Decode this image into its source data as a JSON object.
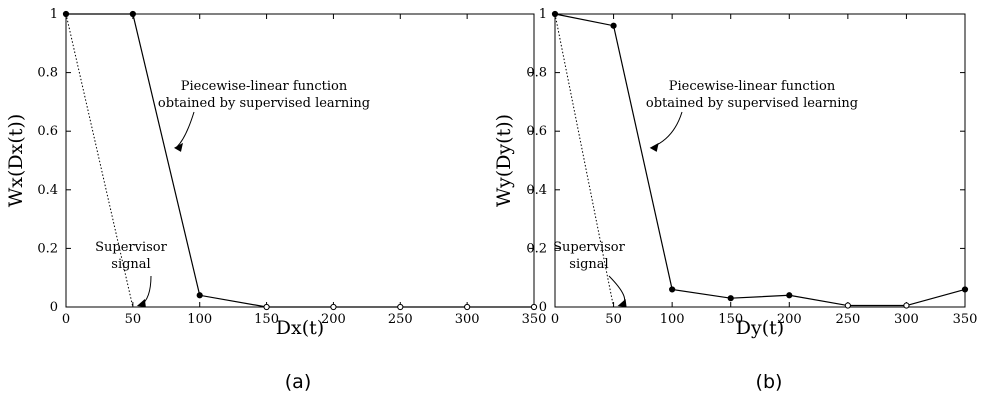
{
  "chart_data": [
    {
      "type": "line",
      "panel_label": "(a)",
      "xlabel": "Dx(t)",
      "ylabel": "Wx(Dx(t))",
      "xlim": [
        0,
        350
      ],
      "ylim": [
        0,
        1
      ],
      "x_ticks": [
        0,
        50,
        100,
        150,
        200,
        250,
        300,
        350
      ],
      "y_ticks": [
        0,
        0.2,
        0.4,
        0.6,
        0.8,
        1
      ],
      "y_tick_labels": [
        "0",
        "0.2",
        "0.4",
        "0.6",
        "0.8",
        "1"
      ],
      "grid": false,
      "series": [
        {
          "role": "learned",
          "style": "solid",
          "x": [
            0,
            50,
            100,
            150,
            200,
            250,
            300,
            350
          ],
          "y": [
            1,
            1,
            0.04,
            0,
            0,
            0,
            0,
            0
          ],
          "filled_markers": [
            0,
            50,
            100
          ],
          "open_markers": [
            150,
            200,
            250,
            300,
            350
          ]
        },
        {
          "role": "supervisor",
          "style": "dotted",
          "x": [
            0,
            50
          ],
          "y": [
            1,
            0
          ]
        }
      ],
      "annotations": [
        {
          "lines": [
            "Piecewise-linear function",
            "obtained by supervised learning"
          ],
          "arrow_to": [
            80,
            0.55
          ]
        },
        {
          "lines": [
            "Supervisor",
            "signal"
          ],
          "arrow_to": [
            50,
            0
          ]
        }
      ]
    },
    {
      "type": "line",
      "panel_label": "(b)",
      "xlabel": "Dy(t)",
      "ylabel": "Wy(Dy(t))",
      "xlim": [
        0,
        350
      ],
      "ylim": [
        0,
        1
      ],
      "x_ticks": [
        0,
        50,
        100,
        150,
        200,
        250,
        300,
        350
      ],
      "y_ticks": [
        0,
        0.2,
        0.4,
        0.6,
        0.8,
        1
      ],
      "y_tick_labels": [
        "0",
        "0.2",
        "0.4",
        "0.6",
        "0.8",
        "1"
      ],
      "grid": false,
      "series": [
        {
          "role": "learned",
          "style": "solid",
          "x": [
            0,
            50,
            100,
            150,
            200,
            250,
            300,
            350
          ],
          "y": [
            1,
            0.96,
            0.06,
            0.03,
            0.04,
            0.005,
            0.005,
            0.06
          ],
          "filled_markers": [
            0,
            50,
            100,
            150,
            200,
            350
          ],
          "open_markers": [
            250,
            300
          ]
        },
        {
          "role": "supervisor",
          "style": "dotted",
          "x": [
            0,
            50
          ],
          "y": [
            1,
            0
          ]
        }
      ],
      "annotations": [
        {
          "lines": [
            "Piecewise-linear function",
            "obtained by supervised learning"
          ],
          "arrow_to": [
            80,
            0.55
          ]
        },
        {
          "lines": [
            "Supervisor",
            "signal"
          ],
          "arrow_to": [
            50,
            0
          ]
        }
      ]
    }
  ]
}
